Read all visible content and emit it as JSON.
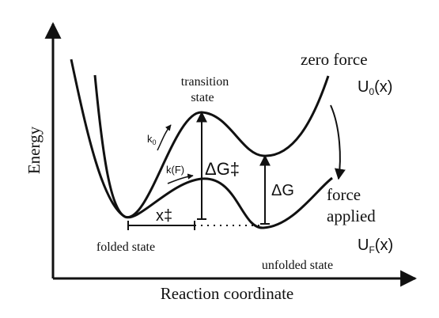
{
  "diagram": {
    "axis_y_label": "Energy",
    "axis_x_label": "Reaction coordinate",
    "curve_zero_force_label": "zero force",
    "curve_zero_force_symbol": "U",
    "curve_zero_force_sub": "0",
    "curve_zero_force_arg": "(x)",
    "curve_force_label_line1": "force",
    "curve_force_label_line2": "applied",
    "curve_force_symbol": "U",
    "curve_force_sub": "F",
    "curve_force_arg": "(x)",
    "transition_line1": "transition",
    "transition_line2": "state",
    "folded_label": "folded state",
    "unfolded_label": "unfolded state",
    "rate_zero": "k",
    "rate_zero_sub": "0",
    "rate_force": "k(F)",
    "barrier_label": "ΔG‡",
    "delta_g_label": "ΔG",
    "distance_label": "x‡",
    "colors": {
      "ink": "#111111",
      "background": "#ffffff"
    }
  }
}
